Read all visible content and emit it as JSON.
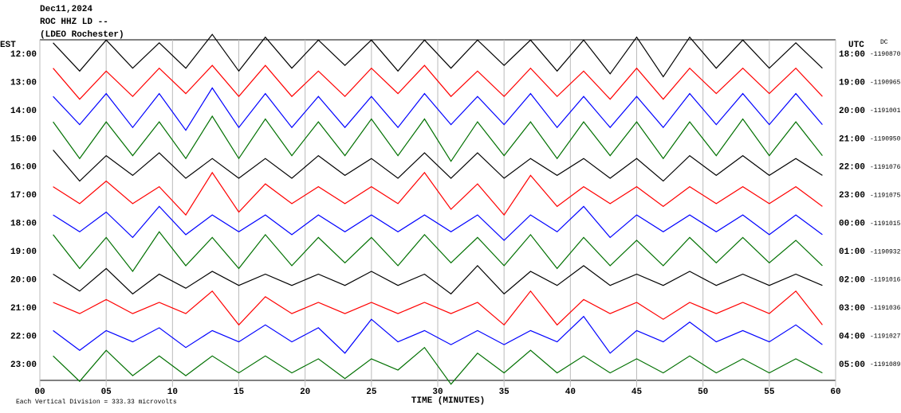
{
  "chart_data": {
    "type": "helicorder",
    "header": [
      "Dec11,2024",
      "ROC HHZ LD --",
      "(LDEO Rochester)"
    ],
    "left_axis_label": "EST",
    "right_axis_label": "UTC",
    "dc_label": "DC",
    "x_label": "TIME (MINUTES)",
    "footer": "Each Vertical Division = 333.33 microvolts",
    "xlim": [
      0,
      60
    ],
    "xticks": [
      {
        "value": 0,
        "label": "00"
      },
      {
        "value": 5,
        "label": "05"
      },
      10,
      15,
      20,
      25,
      30,
      35,
      40,
      45,
      50,
      55,
      60
    ],
    "rows": [
      {
        "est": "12:00",
        "utc": "18:00",
        "dc": -1190870,
        "color": "#000000",
        "values": [
          0.4,
          0.6,
          0.5,
          0.5,
          0.4,
          0.5,
          0.7,
          0.6,
          0.6,
          0.5,
          0.5,
          0.4,
          0.5,
          0.6,
          0.5,
          0.5,
          0.5,
          0.4,
          0.5,
          0.6,
          0.5,
          0.7,
          0.6,
          0.8,
          0.6,
          0.5,
          0.5,
          0.5,
          0.4,
          0.5
        ]
      },
      {
        "est": "13:00",
        "utc": "19:00",
        "dc": -1190965,
        "color": "#ff0000",
        "values": [
          0.5,
          0.6,
          0.4,
          0.5,
          0.5,
          0.4,
          0.6,
          0.5,
          0.6,
          0.5,
          0.4,
          0.5,
          0.5,
          0.4,
          0.6,
          0.5,
          0.4,
          0.5,
          0.5,
          0.5,
          0.4,
          0.6,
          0.5,
          0.6,
          0.5,
          0.4,
          0.5,
          0.4,
          0.5,
          0.5
        ]
      },
      {
        "est": "14:00",
        "utc": "20:00",
        "dc": -1191001,
        "color": "#0000ff",
        "values": [
          0.5,
          0.5,
          0.6,
          0.6,
          0.6,
          0.7,
          0.8,
          0.6,
          0.6,
          0.6,
          0.5,
          0.6,
          0.5,
          0.6,
          0.6,
          0.5,
          0.5,
          0.5,
          0.6,
          0.6,
          0.5,
          0.6,
          0.5,
          0.6,
          0.6,
          0.5,
          0.6,
          0.5,
          0.6,
          0.5
        ]
      },
      {
        "est": "15:00",
        "utc": "21:00",
        "dc": -1190950,
        "color": "#007000",
        "values": [
          0.6,
          0.7,
          0.6,
          0.6,
          0.6,
          0.7,
          0.8,
          0.7,
          0.7,
          0.6,
          0.6,
          0.6,
          0.7,
          0.6,
          0.7,
          0.8,
          0.6,
          0.6,
          0.6,
          0.7,
          0.6,
          0.6,
          0.6,
          0.7,
          0.6,
          0.6,
          0.7,
          0.6,
          0.6,
          0.6
        ]
      },
      {
        "est": "16:00",
        "utc": "22:00",
        "dc": -1191076,
        "color": "#000000",
        "values": [
          0.6,
          0.5,
          0.4,
          0.3,
          0.5,
          0.4,
          0.3,
          0.4,
          0.3,
          0.4,
          0.4,
          0.3,
          0.3,
          0.4,
          0.5,
          0.4,
          0.5,
          0.4,
          0.3,
          0.3,
          0.3,
          0.4,
          0.3,
          0.5,
          0.4,
          0.3,
          0.4,
          0.3,
          0.3,
          0.3
        ]
      },
      {
        "est": "17:00",
        "utc": "23:00",
        "dc": -1191075,
        "color": "#ff0000",
        "values": [
          0.3,
          0.3,
          0.5,
          0.3,
          0.3,
          0.7,
          0.8,
          0.6,
          0.4,
          0.3,
          0.3,
          0.3,
          0.3,
          0.3,
          0.8,
          0.5,
          0.4,
          0.7,
          0.7,
          0.4,
          0.3,
          0.3,
          0.3,
          0.4,
          0.3,
          0.3,
          0.3,
          0.3,
          0.3,
          0.4
        ]
      },
      {
        "est": "18:00",
        "utc": "00:00",
        "dc": -1191015,
        "color": "#0000ff",
        "values": [
          0.3,
          0.3,
          0.4,
          0.5,
          0.6,
          0.4,
          0.3,
          0.3,
          0.3,
          0.4,
          0.3,
          0.3,
          0.3,
          0.3,
          0.3,
          0.3,
          0.3,
          0.6,
          0.3,
          0.3,
          0.6,
          0.5,
          0.3,
          0.3,
          0.3,
          0.3,
          0.3,
          0.4,
          0.3,
          0.4
        ]
      },
      {
        "est": "19:00",
        "utc": "01:00",
        "dc": -1190932,
        "color": "#007000",
        "values": [
          0.6,
          0.6,
          0.5,
          0.7,
          0.7,
          0.5,
          0.5,
          0.6,
          0.6,
          0.5,
          0.5,
          0.4,
          0.5,
          0.5,
          0.6,
          0.4,
          0.5,
          0.5,
          0.6,
          0.6,
          0.5,
          0.5,
          0.4,
          0.5,
          0.5,
          0.4,
          0.5,
          0.4,
          0.4,
          0.5
        ]
      },
      {
        "est": "20:00",
        "utc": "02:00",
        "dc": -1191016,
        "color": "#000000",
        "values": [
          0.2,
          0.4,
          0.4,
          0.5,
          0.2,
          0.3,
          0.3,
          0.2,
          0.2,
          0.2,
          0.2,
          0.2,
          0.3,
          0.2,
          0.2,
          0.5,
          0.5,
          0.5,
          0.3,
          0.2,
          0.5,
          0.2,
          0.2,
          0.2,
          0.3,
          0.2,
          0.2,
          0.2,
          0.2,
          0.2
        ]
      },
      {
        "est": "21:00",
        "utc": "03:00",
        "dc": -1191036,
        "color": "#ff0000",
        "values": [
          0.2,
          0.2,
          0.3,
          0.2,
          0.2,
          0.2,
          0.6,
          0.6,
          0.4,
          0.2,
          0.2,
          0.2,
          0.2,
          0.2,
          0.2,
          0.2,
          0.2,
          0.6,
          0.6,
          0.6,
          0.3,
          0.2,
          0.2,
          0.4,
          0.2,
          0.2,
          0.2,
          0.2,
          0.6,
          0.6
        ]
      },
      {
        "est": "22:00",
        "utc": "04:00",
        "dc": -1191027,
        "color": "#0000ff",
        "values": [
          0.2,
          0.5,
          0.2,
          0.2,
          0.3,
          0.4,
          0.2,
          0.2,
          0.4,
          0.2,
          0.3,
          0.6,
          0.6,
          0.2,
          0.2,
          0.3,
          0.2,
          0.3,
          0.2,
          0.2,
          0.7,
          0.6,
          0.2,
          0.2,
          0.5,
          0.2,
          0.2,
          0.2,
          0.4,
          0.3
        ]
      },
      {
        "est": "23:00",
        "utc": "05:00",
        "dc": -1191089,
        "color": "#007000",
        "values": [
          0.3,
          0.6,
          0.5,
          0.4,
          0.3,
          0.4,
          0.3,
          0.3,
          0.3,
          0.3,
          0.2,
          0.5,
          0.2,
          0.2,
          0.6,
          0.7,
          0.4,
          0.3,
          0.5,
          0.3,
          0.3,
          0.3,
          0.2,
          0.3,
          0.3,
          0.3,
          0.2,
          0.3,
          0.2,
          0.3
        ]
      }
    ]
  }
}
